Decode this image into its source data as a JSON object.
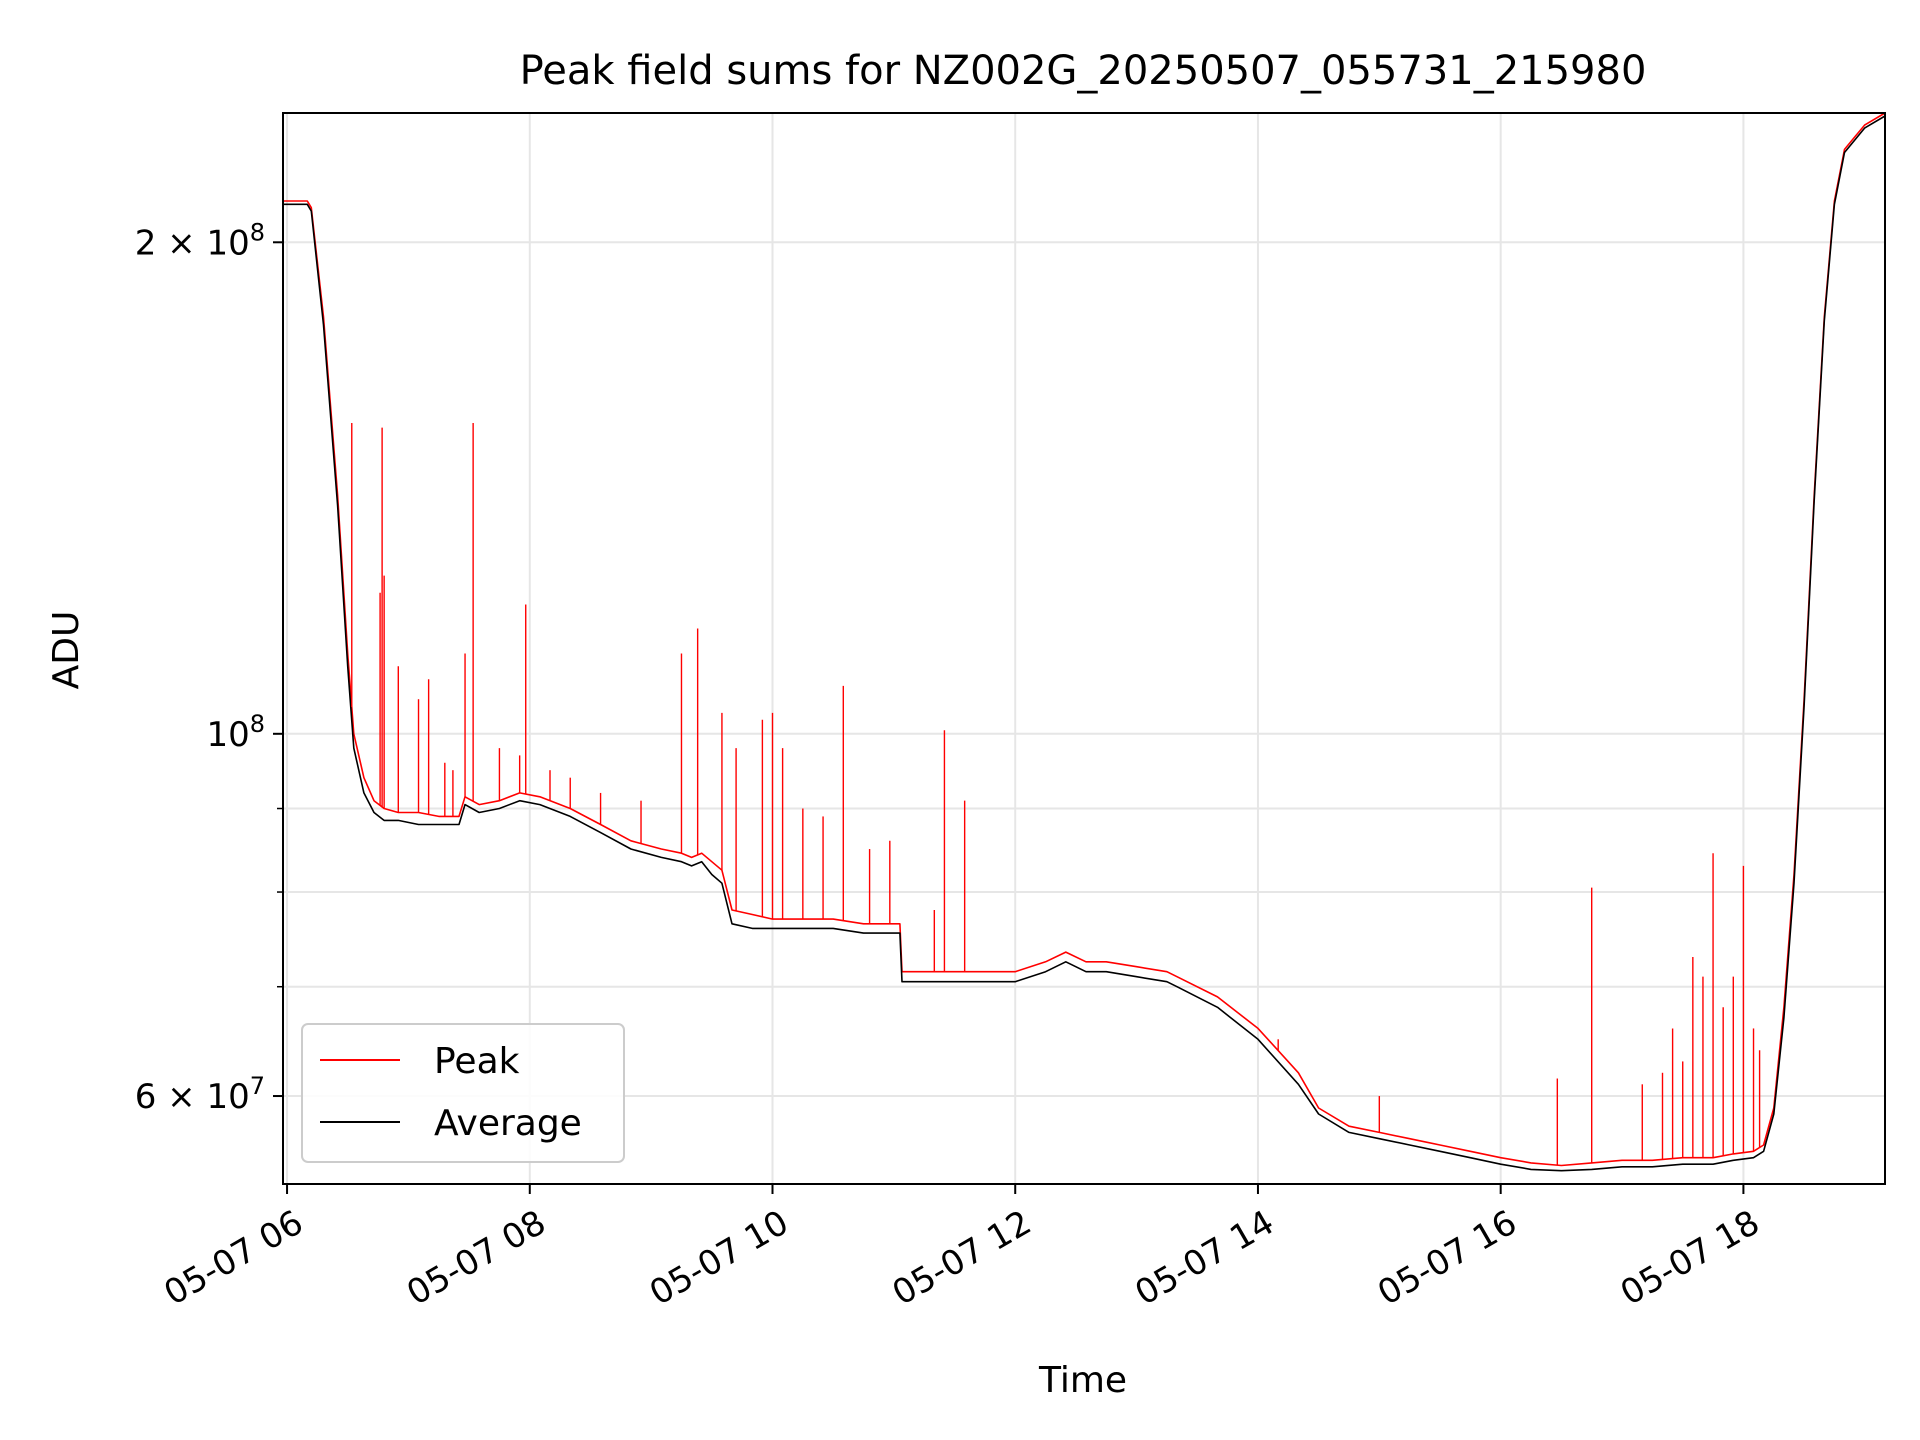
{
  "chart_data": {
    "type": "line",
    "title": "Peak field sums for NZ002G_20250507_055731_215980",
    "xlabel": "Time",
    "ylabel": "ADU",
    "yscale": "log",
    "xlim": [
      "05-07 05:58",
      "05-07 19:10"
    ],
    "ylim": [
      53000000,
      240000000
    ],
    "x_ticks": [
      "05-07 06",
      "05-07 08",
      "05-07 10",
      "05-07 12",
      "05-07 14",
      "05-07 16",
      "05-07 18"
    ],
    "y_tick_labels": [
      {
        "value": 200000000,
        "mantissa": "2",
        "exponent": "8"
      },
      {
        "value": 100000000,
        "mantissa": "",
        "exponent": "8"
      },
      {
        "value": 60000000,
        "mantissa": "6",
        "exponent": "7"
      }
    ],
    "grid": true,
    "legend_position": "lower left",
    "series": [
      {
        "name": "Peak",
        "color": "#ff0000",
        "x": [
          "05:58",
          "06:10",
          "06:12",
          "06:18",
          "06:25",
          "06:30",
          "06:33",
          "06:38",
          "06:43",
          "06:48",
          "06:55",
          "07:05",
          "07:15",
          "07:25",
          "07:28",
          "07:35",
          "07:45",
          "07:55",
          "08:05",
          "08:20",
          "08:35",
          "08:50",
          "09:05",
          "09:15",
          "09:20",
          "09:25",
          "09:30",
          "09:35",
          "09:40",
          "09:50",
          "10:00",
          "10:15",
          "10:30",
          "10:45",
          "11:00",
          "11:03",
          "11:04",
          "11:20",
          "11:40",
          "12:00",
          "12:15",
          "12:25",
          "12:35",
          "12:45",
          "13:00",
          "13:15",
          "13:20",
          "13:40",
          "14:00",
          "14:20",
          "14:30",
          "14:45",
          "15:00",
          "15:15",
          "15:30",
          "15:45",
          "16:00",
          "16:15",
          "16:30",
          "16:45",
          "17:00",
          "17:15",
          "17:30",
          "17:45",
          "17:55",
          "18:05",
          "18:10",
          "18:15",
          "18:20",
          "18:25",
          "18:30",
          "18:35",
          "18:40",
          "18:45",
          "18:50",
          "18:55",
          "19:00",
          "19:10"
        ],
        "y": [
          212000000,
          212000000,
          210000000,
          180000000,
          140000000,
          112000000,
          100000000,
          94000000,
          91000000,
          90000000,
          89500000,
          89500000,
          89000000,
          89000000,
          91500000,
          90500000,
          91000000,
          92000000,
          91500000,
          90000000,
          88000000,
          86000000,
          85000000,
          84500000,
          84000000,
          84500000,
          83500000,
          82500000,
          78000000,
          77500000,
          77000000,
          77000000,
          77000000,
          76500000,
          76500000,
          76500000,
          71500000,
          71500000,
          71500000,
          71500000,
          72500000,
          73500000,
          72500000,
          72500000,
          72000000,
          71500000,
          71000000,
          69000000,
          66000000,
          62000000,
          59000000,
          57500000,
          57000000,
          56500000,
          56000000,
          55500000,
          55000000,
          54600000,
          54400000,
          54600000,
          54800000,
          54800000,
          55000000,
          55000000,
          55300000,
          55500000,
          56000000,
          59000000,
          68000000,
          82000000,
          105000000,
          140000000,
          180000000,
          212000000,
          228000000,
          232000000,
          236000000,
          240000000
        ]
      },
      {
        "name": "Average",
        "color": "#000000",
        "x": [
          "05:58",
          "06:10",
          "06:12",
          "06:18",
          "06:25",
          "06:30",
          "06:33",
          "06:38",
          "06:43",
          "06:48",
          "06:55",
          "07:05",
          "07:15",
          "07:25",
          "07:28",
          "07:35",
          "07:45",
          "07:55",
          "08:05",
          "08:20",
          "08:35",
          "08:50",
          "09:05",
          "09:15",
          "09:20",
          "09:25",
          "09:30",
          "09:35",
          "09:40",
          "09:50",
          "10:00",
          "10:15",
          "10:30",
          "10:45",
          "11:00",
          "11:03",
          "11:04",
          "11:20",
          "11:40",
          "12:00",
          "12:15",
          "12:25",
          "12:35",
          "12:45",
          "13:00",
          "13:15",
          "13:20",
          "13:40",
          "14:00",
          "14:20",
          "14:30",
          "14:45",
          "15:00",
          "15:15",
          "15:30",
          "15:45",
          "16:00",
          "16:15",
          "16:30",
          "16:45",
          "17:00",
          "17:15",
          "17:30",
          "17:45",
          "17:55",
          "18:05",
          "18:10",
          "18:15",
          "18:20",
          "18:25",
          "18:30",
          "18:35",
          "18:40",
          "18:45",
          "18:50",
          "18:55",
          "19:00",
          "19:10"
        ],
        "y": [
          211000000,
          211000000,
          209000000,
          178000000,
          138000000,
          110000000,
          98000000,
          92000000,
          89500000,
          88500000,
          88500000,
          88000000,
          88000000,
          88000000,
          90500000,
          89500000,
          90000000,
          91000000,
          90500000,
          89000000,
          87000000,
          85000000,
          84000000,
          83500000,
          83000000,
          83500000,
          82000000,
          81000000,
          76500000,
          76000000,
          76000000,
          76000000,
          76000000,
          75500000,
          75500000,
          75500000,
          70500000,
          70500000,
          70500000,
          70500000,
          71500000,
          72500000,
          71500000,
          71500000,
          71000000,
          70500000,
          70000000,
          68000000,
          65000000,
          61000000,
          58500000,
          57000000,
          56500000,
          56000000,
          55500000,
          55000000,
          54500000,
          54100000,
          54000000,
          54100000,
          54300000,
          54300000,
          54500000,
          54500000,
          54800000,
          55000000,
          55500000,
          58500000,
          67000000,
          81000000,
          104000000,
          139000000,
          179000000,
          211000000,
          227000000,
          231000000,
          235000000,
          239000000
        ]
      }
    ],
    "peak_spikes": [
      {
        "x": "06:32",
        "y": 155000000
      },
      {
        "x": "06:46",
        "y": 122000000
      },
      {
        "x": "06:47",
        "y": 154000000
      },
      {
        "x": "06:48",
        "y": 125000000
      },
      {
        "x": "06:55",
        "y": 110000000
      },
      {
        "x": "07:05",
        "y": 105000000
      },
      {
        "x": "07:10",
        "y": 108000000
      },
      {
        "x": "07:18",
        "y": 96000000
      },
      {
        "x": "07:22",
        "y": 95000000
      },
      {
        "x": "07:28",
        "y": 112000000
      },
      {
        "x": "07:32",
        "y": 155000000
      },
      {
        "x": "07:45",
        "y": 98000000
      },
      {
        "x": "07:55",
        "y": 97000000
      },
      {
        "x": "07:58",
        "y": 120000000
      },
      {
        "x": "08:10",
        "y": 95000000
      },
      {
        "x": "08:20",
        "y": 94000000
      },
      {
        "x": "08:35",
        "y": 92000000
      },
      {
        "x": "08:55",
        "y": 91000000
      },
      {
        "x": "09:15",
        "y": 112000000
      },
      {
        "x": "09:23",
        "y": 116000000
      },
      {
        "x": "09:35",
        "y": 103000000
      },
      {
        "x": "09:42",
        "y": 98000000
      },
      {
        "x": "09:55",
        "y": 102000000
      },
      {
        "x": "10:00",
        "y": 103000000
      },
      {
        "x": "10:05",
        "y": 98000000
      },
      {
        "x": "10:15",
        "y": 90000000
      },
      {
        "x": "10:25",
        "y": 89000000
      },
      {
        "x": "10:35",
        "y": 107000000
      },
      {
        "x": "10:48",
        "y": 85000000
      },
      {
        "x": "10:58",
        "y": 86000000
      },
      {
        "x": "11:20",
        "y": 78000000
      },
      {
        "x": "11:25",
        "y": 100500000
      },
      {
        "x": "11:35",
        "y": 91000000
      },
      {
        "x": "14:10",
        "y": 65000000
      },
      {
        "x": "15:00",
        "y": 60000000
      },
      {
        "x": "16:28",
        "y": 61500000
      },
      {
        "x": "16:45",
        "y": 80500000
      },
      {
        "x": "17:10",
        "y": 61000000
      },
      {
        "x": "17:20",
        "y": 62000000
      },
      {
        "x": "17:25",
        "y": 66000000
      },
      {
        "x": "17:30",
        "y": 63000000
      },
      {
        "x": "17:35",
        "y": 73000000
      },
      {
        "x": "17:40",
        "y": 71000000
      },
      {
        "x": "17:45",
        "y": 84500000
      },
      {
        "x": "17:50",
        "y": 68000000
      },
      {
        "x": "17:55",
        "y": 71000000
      },
      {
        "x": "18:00",
        "y": 83000000
      },
      {
        "x": "18:05",
        "y": 66000000
      },
      {
        "x": "18:08",
        "y": 64000000
      }
    ]
  }
}
